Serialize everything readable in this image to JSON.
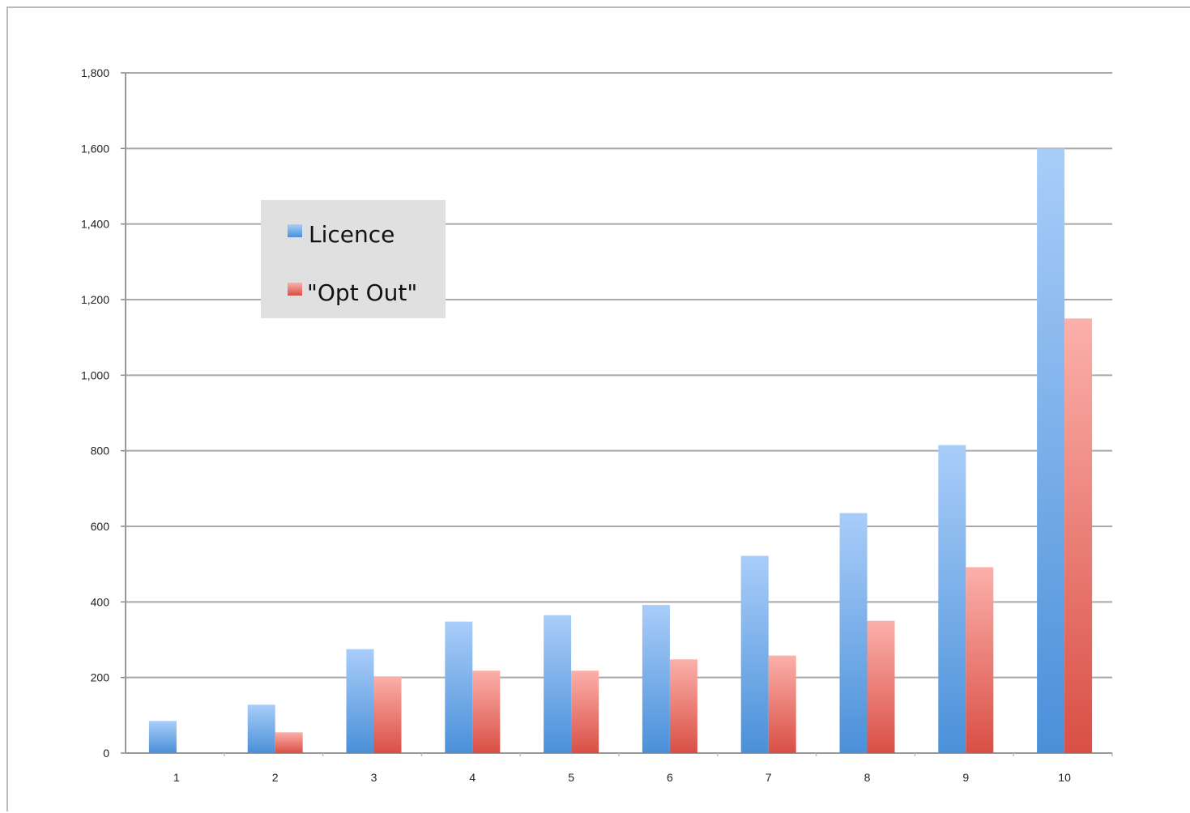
{
  "chart_data": {
    "type": "bar",
    "title": "",
    "xlabel": "",
    "ylabel": "",
    "categories": [
      "1",
      "2",
      "3",
      "4",
      "5",
      "6",
      "7",
      "8",
      "9",
      "10"
    ],
    "series": [
      {
        "name": "Licence",
        "color": "#4a90d9",
        "color_light": "#a9cdf9",
        "values": [
          85,
          128,
          275,
          348,
          365,
          392,
          522,
          635,
          815,
          1600
        ]
      },
      {
        "name": "\"Opt Out\"",
        "color": "#d94f45",
        "color_light": "#fbb0aa",
        "values": [
          0,
          55,
          203,
          218,
          218,
          248,
          258,
          350,
          492,
          1150
        ]
      }
    ],
    "ylim": [
      0,
      1800
    ],
    "yticks": [
      "0",
      "200",
      "400",
      "600",
      "800",
      "1,000",
      "1,200",
      "1,400",
      "1,600",
      "1,800"
    ],
    "grid": true,
    "legend_position": "upper-left"
  }
}
